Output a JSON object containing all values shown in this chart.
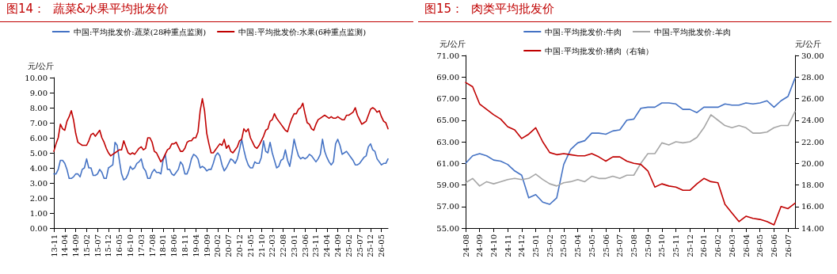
{
  "chart_data": [
    {
      "type": "line",
      "title": "图14：  蔬菜&水果平均批发价",
      "ylabel": "元/公斤",
      "legend": "top",
      "grid": false,
      "marker": "none",
      "line_style": "solid",
      "categories": [
        "13-11",
        null,
        null,
        null,
        null,
        "14-04",
        null,
        null,
        null,
        null,
        "14-09",
        null,
        null,
        null,
        null,
        "15-02",
        null,
        null,
        null,
        null,
        "15-07",
        null,
        null,
        null,
        null,
        "15-12",
        null,
        null,
        null,
        null,
        "16-05",
        null,
        null,
        null,
        null,
        "16-10",
        null,
        null,
        null,
        null,
        "17-03",
        null,
        null,
        null,
        null,
        "17-08",
        null,
        null,
        null,
        null,
        "18-01",
        null,
        null,
        null,
        null,
        "18-06",
        null,
        null,
        null,
        null,
        "18-11",
        null,
        null,
        null,
        null,
        "19-04",
        null,
        null,
        null,
        null,
        "19-09",
        null,
        null,
        null,
        null,
        "20-02",
        null,
        null,
        null,
        null,
        "20-07",
        null,
        null,
        null,
        null,
        "20-12",
        null,
        null,
        null,
        null,
        "21-05",
        null,
        null,
        null,
        null,
        "21-10",
        null,
        null,
        null,
        null,
        "22-03",
        null,
        null,
        null,
        null,
        "22-08",
        null,
        null,
        null,
        null,
        "23-01",
        null,
        null,
        null,
        null,
        "23-06",
        null,
        null,
        null,
        null,
        "23-11",
        null,
        null,
        null,
        null,
        "24-04",
        null,
        null,
        null,
        null,
        "24-09",
        null,
        null,
        null,
        null,
        "25-02",
        null,
        null,
        null,
        null,
        "25-07",
        null,
        null,
        null,
        null,
        "25-12",
        null,
        null,
        null,
        null,
        "26-05",
        null,
        null,
        null
      ],
      "ylim": [
        0,
        10
      ],
      "yticks": [
        {
          "value": 0,
          "label": "0.00"
        },
        {
          "value": 1,
          "label": "1.00"
        },
        {
          "value": 2,
          "label": "2.00"
        },
        {
          "value": 3,
          "label": "3.00"
        },
        {
          "value": 4,
          "label": "4.00"
        },
        {
          "value": 5,
          "label": "5.00"
        },
        {
          "value": 6,
          "label": "6.00"
        },
        {
          "value": 7,
          "label": "7.00"
        },
        {
          "value": 8,
          "label": "8.00"
        },
        {
          "value": 9,
          "label": "9.00"
        },
        {
          "value": 10,
          "label": "10.00"
        }
      ],
      "series": [
        {
          "name": "中国:平均批发价:蔬菜(28种重点监测)",
          "color": "#4472c4",
          "values": [
            3.6,
            3.6,
            3.9,
            4.5,
            4.5,
            4.3,
            3.9,
            3.3,
            3.3,
            3.4,
            3.6,
            3.6,
            3.4,
            3.9,
            4.0,
            4.6,
            4.0,
            4.0,
            3.5,
            3.5,
            3.6,
            3.9,
            3.7,
            3.3,
            3.3,
            4.0,
            4.1,
            4.2,
            5.7,
            5.5,
            4.5,
            3.6,
            3.2,
            3.3,
            3.6,
            4.1,
            3.9,
            4.0,
            4.3,
            4.4,
            4.6,
            4.0,
            3.8,
            3.3,
            3.3,
            3.7,
            3.9,
            3.7,
            3.7,
            3.6,
            4.5,
            4.9,
            3.9,
            3.9,
            3.6,
            3.5,
            3.7,
            3.9,
            4.4,
            4.2,
            3.6,
            3.6,
            4.0,
            4.6,
            4.9,
            4.8,
            4.6,
            4.0,
            4.1,
            4.0,
            3.8,
            3.9,
            3.9,
            4.3,
            4.8,
            5.0,
            4.8,
            4.2,
            3.8,
            4.0,
            4.3,
            4.6,
            4.5,
            4.3,
            4.6,
            5.2,
            5.9,
            5.2,
            4.6,
            4.2,
            4.0,
            4.0,
            4.4,
            4.3,
            4.3,
            4.7,
            5.8,
            5.1,
            5.0,
            5.7,
            5.0,
            4.5,
            4.0,
            4.1,
            4.5,
            4.6,
            5.2,
            4.5,
            4.1,
            4.9,
            5.9,
            5.3,
            4.8,
            4.6,
            4.7,
            4.6,
            4.7,
            4.9,
            4.8,
            4.6,
            4.4,
            4.6,
            4.9,
            5.9,
            5.1,
            4.7,
            4.4,
            4.2,
            4.4,
            5.6,
            5.9,
            5.5,
            4.9,
            5.0,
            5.1,
            4.9,
            4.7,
            4.5,
            4.2,
            4.2,
            4.3,
            4.5,
            4.7,
            4.8,
            5.4,
            5.6,
            5.2,
            5.1,
            4.6,
            4.4,
            4.2,
            4.3,
            4.3,
            4.6
          ]
        },
        {
          "name": "中国:平均批发价:水果(6种重点监测)",
          "color": "#c00000",
          "values": [
            5.1,
            5.6,
            6.0,
            6.9,
            6.6,
            6.5,
            7.1,
            7.4,
            7.8,
            7.2,
            6.3,
            5.7,
            5.6,
            5.5,
            5.5,
            5.5,
            5.8,
            6.2,
            6.3,
            6.1,
            6.3,
            6.5,
            6.0,
            5.7,
            5.3,
            5.0,
            4.8,
            4.9,
            5.0,
            5.1,
            5.2,
            5.2,
            5.8,
            5.4,
            5.0,
            4.9,
            5.0,
            4.9,
            5.1,
            5.3,
            5.4,
            5.2,
            5.3,
            6.0,
            6.0,
            5.7,
            5.1,
            5.0,
            4.7,
            4.4,
            4.6,
            4.9,
            5.2,
            5.3,
            5.6,
            5.6,
            5.7,
            5.4,
            5.1,
            5.1,
            5.3,
            5.7,
            5.8,
            5.8,
            6.0,
            6.0,
            6.4,
            7.8,
            8.6,
            7.8,
            6.3,
            5.6,
            5.0,
            5.0,
            5.2,
            5.4,
            5.6,
            5.5,
            5.9,
            5.3,
            5.5,
            5.1,
            5.0,
            5.2,
            5.4,
            5.8,
            5.9,
            6.6,
            6.4,
            6.6,
            6.0,
            5.7,
            5.4,
            5.3,
            5.5,
            5.8,
            6.1,
            6.5,
            6.6,
            7.1,
            7.2,
            7.6,
            7.3,
            7.1,
            6.9,
            6.7,
            6.5,
            6.4,
            6.9,
            7.3,
            7.6,
            7.6,
            7.9,
            8.0,
            8.3,
            7.6,
            7.0,
            6.9,
            6.6,
            6.5,
            6.9,
            7.2,
            7.3,
            7.4,
            7.5,
            7.4,
            7.3,
            7.4,
            7.3,
            7.3,
            7.4,
            7.3,
            7.2,
            7.2,
            7.5,
            7.5,
            7.6,
            7.7,
            8.0,
            7.5,
            7.2,
            6.9,
            7.0,
            7.1,
            7.5,
            7.9,
            8.0,
            7.9,
            7.7,
            7.8,
            7.4,
            7.1,
            7.0,
            6.6
          ]
        }
      ]
    },
    {
      "type": "line",
      "title": "图15：  肉类平均批发价",
      "ylabel": "元/公斤",
      "y2label": "元/公斤",
      "legend": "top",
      "grid": false,
      "marker": "none",
      "line_style": "solid",
      "categories": [
        "24-08",
        null,
        "24-09",
        null,
        "24-10",
        null,
        "24-11",
        null,
        "24-12",
        null,
        "25-01",
        null,
        "25-02",
        null,
        "25-03",
        null,
        "25-04",
        null,
        "25-05",
        null,
        "25-06",
        null,
        "25-07",
        null,
        "25-08",
        null,
        "25-09",
        null,
        "25-10",
        null,
        "25-11",
        null,
        "25-12",
        null,
        "26-01",
        null,
        "26-02",
        null,
        "26-03",
        null,
        "26-04",
        null,
        "26-05",
        null,
        "26-06",
        null,
        "26-07",
        null
      ],
      "ylim": [
        55,
        71
      ],
      "yticks": [
        {
          "value": 55,
          "label": "55.00"
        },
        {
          "value": 57,
          "label": "57.00"
        },
        {
          "value": 59,
          "label": "59.00"
        },
        {
          "value": 61,
          "label": "61.00"
        },
        {
          "value": 63,
          "label": "63.00"
        },
        {
          "value": 65,
          "label": "65.00"
        },
        {
          "value": 67,
          "label": "67.00"
        },
        {
          "value": 69,
          "label": "69.00"
        },
        {
          "value": 71,
          "label": "71.00"
        }
      ],
      "y2lim": [
        14,
        30
      ],
      "y2ticks": [
        {
          "value": 14,
          "label": "14.00"
        },
        {
          "value": 16,
          "label": "16.00"
        },
        {
          "value": 18,
          "label": "18.00"
        },
        {
          "value": 20,
          "label": "20.00"
        },
        {
          "value": 22,
          "label": "22.00"
        },
        {
          "value": 24,
          "label": "24.00"
        },
        {
          "value": 26,
          "label": "26.00"
        },
        {
          "value": 28,
          "label": "28.00"
        },
        {
          "value": 30,
          "label": "30.00"
        }
      ],
      "series": [
        {
          "name": "中国:平均批发价:牛肉",
          "color": "#4472c4",
          "values": [
            61.0,
            61.7,
            61.9,
            61.7,
            61.3,
            61.2,
            60.9,
            60.3,
            59.9,
            57.8,
            58.1,
            57.4,
            57.2,
            57.8,
            60.9,
            62.3,
            62.9,
            63.1,
            63.8,
            63.8,
            63.7,
            64.0,
            64.1,
            65.0,
            65.1,
            66.1,
            66.2,
            66.2,
            66.6,
            66.6,
            66.5,
            66.0,
            66.0,
            65.7,
            66.2,
            66.2,
            66.2,
            66.5,
            66.4,
            66.4,
            66.6,
            66.5,
            66.6,
            66.8,
            66.2,
            66.8,
            67.2,
            68.9
          ]
        },
        {
          "name": "中国:平均批发价:羊肉",
          "color": "#a6a6a6",
          "values": [
            59.2,
            59.6,
            58.9,
            59.3,
            59.1,
            59.3,
            59.5,
            59.6,
            59.5,
            59.6,
            60.0,
            59.5,
            59.1,
            58.9,
            59.2,
            59.3,
            59.5,
            59.3,
            59.8,
            59.6,
            59.6,
            59.8,
            59.6,
            59.9,
            59.9,
            61.0,
            61.9,
            61.9,
            62.9,
            62.7,
            63.0,
            62.9,
            63.0,
            63.4,
            64.3,
            65.5,
            65.0,
            64.5,
            64.3,
            64.5,
            64.3,
            63.8,
            63.8,
            63.9,
            64.3,
            64.5,
            64.5,
            65.8
          ]
        },
        {
          "name": "中国:平均批发价:猪肉（右轴）",
          "color": "#c00000",
          "axis": "y2",
          "values": [
            27.5,
            27.1,
            25.5,
            25.0,
            24.5,
            24.1,
            23.4,
            23.1,
            22.3,
            22.7,
            23.3,
            22.0,
            21.0,
            20.8,
            20.9,
            20.8,
            20.7,
            20.7,
            20.9,
            20.6,
            20.2,
            20.6,
            20.6,
            20.2,
            20.0,
            19.9,
            19.3,
            17.8,
            18.1,
            17.9,
            17.8,
            17.5,
            17.5,
            18.1,
            18.6,
            18.3,
            18.2,
            16.2,
            15.4,
            14.6,
            15.1,
            14.9,
            14.8,
            14.6,
            14.3,
            16.0,
            15.8,
            16.3
          ]
        }
      ]
    }
  ]
}
